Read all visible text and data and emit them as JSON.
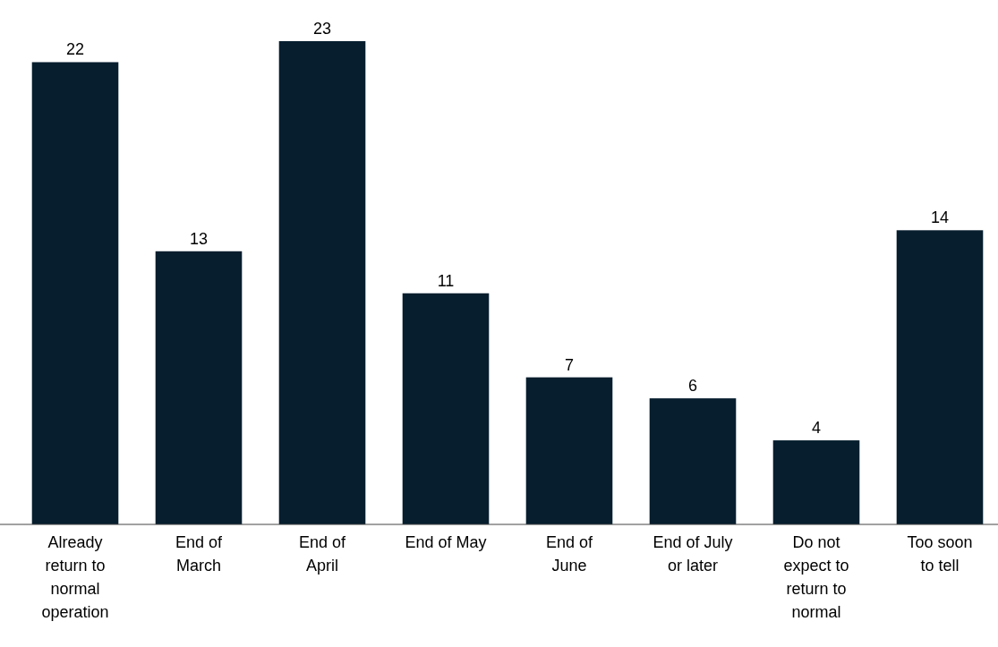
{
  "chart_data": {
    "type": "bar",
    "categories": [
      "Already return to normal operation",
      "End of March",
      "End of April",
      "End of May",
      "End of June",
      "End of July or later",
      "Do not expect to return to normal",
      "Too soon to tell"
    ],
    "values": [
      22,
      13,
      23,
      11,
      7,
      6,
      4,
      14
    ],
    "color": "#061e2e",
    "data_labels": true
  }
}
